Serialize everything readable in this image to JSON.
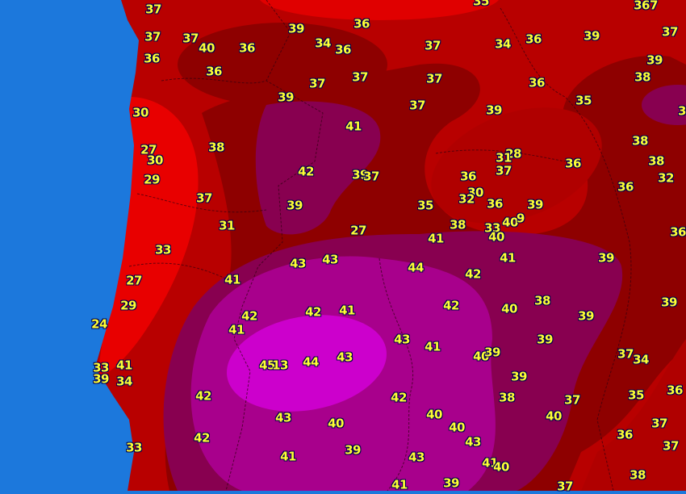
{
  "map": {
    "colors": {
      "ocean": "#1c78dc",
      "bright_red": "#f00000",
      "red": "#c00000",
      "dark_red": "#8e0000",
      "purple": "#880050",
      "magenta": "#a8008c",
      "bright_magenta": "#cc00cc",
      "label_text": "#ffff33",
      "label_outline": "#000050"
    }
  },
  "labels": [
    "37",
    "37",
    "37",
    "40",
    "36",
    "36",
    "39",
    "36",
    "34",
    "36",
    "36",
    "37",
    "37",
    "39",
    "30",
    "41",
    "27",
    "30",
    "38",
    "29",
    "42",
    "39",
    "37",
    "37",
    "39",
    "31",
    "27",
    "33",
    "43",
    "43",
    "41",
    "27",
    "29",
    "42",
    "41",
    "42",
    "41",
    "24",
    "33",
    "41",
    "39",
    "34",
    "45",
    "13",
    "44",
    "43",
    "42",
    "43",
    "40",
    "42",
    "33",
    "41",
    "39",
    "35",
    "367",
    "37",
    "34",
    "36",
    "39",
    "37",
    "37",
    "36",
    "39",
    "38",
    "37",
    "39",
    "35",
    "3",
    "38",
    "38",
    "32",
    "28",
    "31",
    "37",
    "36",
    "36",
    "30",
    "32",
    "36",
    "39",
    "35",
    "36",
    "38",
    "33",
    "40",
    "9",
    "40",
    "41",
    "36",
    "44",
    "42",
    "41",
    "39",
    "42",
    "40",
    "38",
    "39",
    "39",
    "43",
    "41",
    "40",
    "39",
    "39",
    "37",
    "34",
    "39",
    "42",
    "38",
    "37",
    "35",
    "36",
    "40",
    "40",
    "40",
    "43",
    "36",
    "37",
    "37",
    "43",
    "41",
    "40",
    "39",
    "41",
    "37",
    "38"
  ]
}
